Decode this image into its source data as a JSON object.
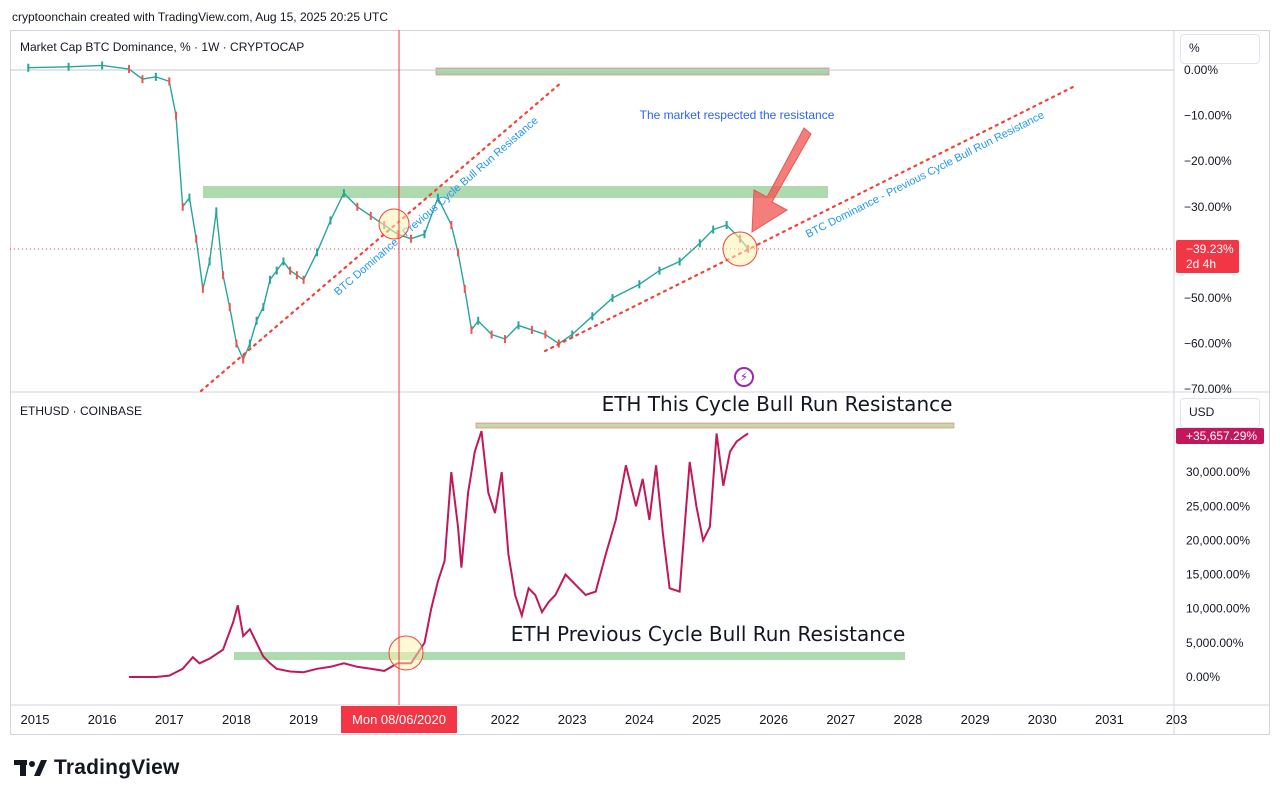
{
  "header": {
    "caption": "cryptoonchain created with TradingView.com, Aug 15, 2025 20:25 UTC"
  },
  "brand": {
    "name": "TradingView"
  },
  "colors": {
    "accent_red": "#f23645",
    "eth_line": "#c2185b",
    "zone_fill": "#a5d6a7",
    "guide_dots": "#f44336",
    "btc_candle_up": "#26a69a",
    "btc_candle_down": "#ef5350"
  },
  "top_pane": {
    "symbol": "Market Cap BTC Dominance, % · 1W · CRYPTOCAP",
    "unit_button": "%",
    "price_badge": "−39.23%",
    "countdown": "2d 4h"
  },
  "bottom_pane": {
    "symbol": "ETHUSD · COINBASE",
    "unit_button": "USD",
    "price_badge": "+35,657.29%"
  },
  "time_axis": {
    "labels": [
      "2015",
      "2016",
      "2017",
      "2018",
      "2019",
      "2022",
      "2023",
      "2024",
      "2025",
      "2026",
      "2027",
      "2028",
      "2029",
      "2030",
      "2031",
      "203"
    ],
    "crosshair_label": "Mon 08/06/2020"
  },
  "chart_data": [
    {
      "type": "line",
      "title": "Market Cap BTC Dominance, % · 1W · CRYPTOCAP",
      "ylabel": "%",
      "y_ticks": [
        "0.00%",
        "−10.00%",
        "−20.00%",
        "−30.00%",
        "−50.00%",
        "−60.00%",
        "−70.00%"
      ],
      "ylim": [
        -70,
        0
      ],
      "last_value": -39.23,
      "series": [
        {
          "x": [
            2014.9,
            2015.5,
            2016.0,
            2016.4,
            2016.6,
            2016.8,
            2017.0,
            2017.1,
            2017.2,
            2017.3,
            2017.4,
            2017.5,
            2017.6,
            2017.7,
            2017.8,
            2017.9,
            2018.0,
            2018.1,
            2018.2,
            2018.3,
            2018.4,
            2018.5,
            2018.6,
            2018.7,
            2018.8,
            2018.9,
            2019.0,
            2019.2,
            2019.4,
            2019.6,
            2019.8,
            2020.0,
            2020.2,
            2020.4,
            2020.6,
            2020.8,
            2021.0,
            2021.2,
            2021.3,
            2021.4,
            2021.5,
            2021.6,
            2021.8,
            2022.0,
            2022.2,
            2022.4,
            2022.6,
            2022.8,
            2023.0,
            2023.3,
            2023.6,
            2024.0,
            2024.3,
            2024.6,
            2024.9,
            2025.1,
            2025.3,
            2025.5,
            2025.62
          ],
          "y": [
            0.5,
            0.7,
            1.0,
            0.2,
            -2.0,
            -1.5,
            -2.5,
            -10.0,
            -30.0,
            -28.0,
            -37.0,
            -48.0,
            -42.0,
            -31.0,
            -45.0,
            -52.0,
            -60.0,
            -63.5,
            -60.0,
            -55.0,
            -52.0,
            -46.0,
            -44.0,
            -42.0,
            -44.0,
            -45.0,
            -46.0,
            -40.0,
            -33.0,
            -27.0,
            -30.0,
            -32.0,
            -34.0,
            -36.0,
            -37.0,
            -36.0,
            -28.0,
            -34.0,
            -40.0,
            -48.0,
            -57.0,
            -55.0,
            -58.0,
            -59.0,
            -56.0,
            -57.0,
            -58.0,
            -60.0,
            -58.0,
            -54.0,
            -50.0,
            -47.0,
            -44.0,
            -42.0,
            -38.0,
            -35.0,
            -34.0,
            -37.0,
            -39.23
          ]
        }
      ],
      "annotations": [
        "BTC Dominance - Previous Cycle Bull Run Resistance",
        "BTC Dominance - Previous Cycle Bull Run Resistance",
        "The market respected the resistance"
      ]
    },
    {
      "type": "line",
      "title": "ETHUSD · COINBASE",
      "ylabel": "USD",
      "y_ticks": [
        "30,000.00%",
        "25,000.00%",
        "20,000.00%",
        "15,000.00%",
        "10,000.00%",
        "5,000.00%",
        "0.00%"
      ],
      "ylim": [
        -2000,
        38000
      ],
      "last_value": 35657.29,
      "series": [
        {
          "x": [
            2016.4,
            2016.8,
            2017.0,
            2017.2,
            2017.35,
            2017.45,
            2017.6,
            2017.8,
            2017.95,
            2018.02,
            2018.1,
            2018.2,
            2018.3,
            2018.4,
            2018.5,
            2018.6,
            2018.8,
            2019.0,
            2019.2,
            2019.4,
            2019.6,
            2019.8,
            2020.0,
            2020.2,
            2020.4,
            2020.6,
            2020.8,
            2020.9,
            2021.0,
            2021.1,
            2021.2,
            2021.3,
            2021.35,
            2021.45,
            2021.55,
            2021.65,
            2021.75,
            2021.85,
            2021.95,
            2022.05,
            2022.15,
            2022.25,
            2022.35,
            2022.45,
            2022.55,
            2022.65,
            2022.75,
            2022.9,
            2023.05,
            2023.2,
            2023.35,
            2023.5,
            2023.65,
            2023.8,
            2023.95,
            2024.05,
            2024.15,
            2024.25,
            2024.35,
            2024.45,
            2024.6,
            2024.75,
            2024.85,
            2024.95,
            2025.05,
            2025.15,
            2025.25,
            2025.35,
            2025.45,
            2025.55,
            2025.62
          ],
          "y": [
            0,
            0,
            200,
            1200,
            2900,
            2000,
            2700,
            4000,
            8000,
            10500,
            6000,
            7000,
            5000,
            3000,
            2000,
            1200,
            800,
            700,
            1200,
            1500,
            2000,
            1500,
            1200,
            900,
            2000,
            2000,
            5000,
            10000,
            14000,
            17000,
            30000,
            22000,
            16000,
            27000,
            33000,
            36000,
            27000,
            24000,
            30000,
            18000,
            12000,
            9000,
            13000,
            12000,
            9500,
            11000,
            12000,
            15000,
            13500,
            12000,
            12500,
            18000,
            23000,
            31000,
            25000,
            29000,
            23000,
            31000,
            21000,
            13000,
            12500,
            31500,
            25000,
            20000,
            22000,
            35657.29,
            28000,
            33000,
            34500,
            35200,
            35657.29
          ]
        }
      ],
      "annotations": [
        "ETH This Cycle Bull Run Resistance",
        "ETH Previous Cycle Bull Run Resistance"
      ]
    }
  ]
}
